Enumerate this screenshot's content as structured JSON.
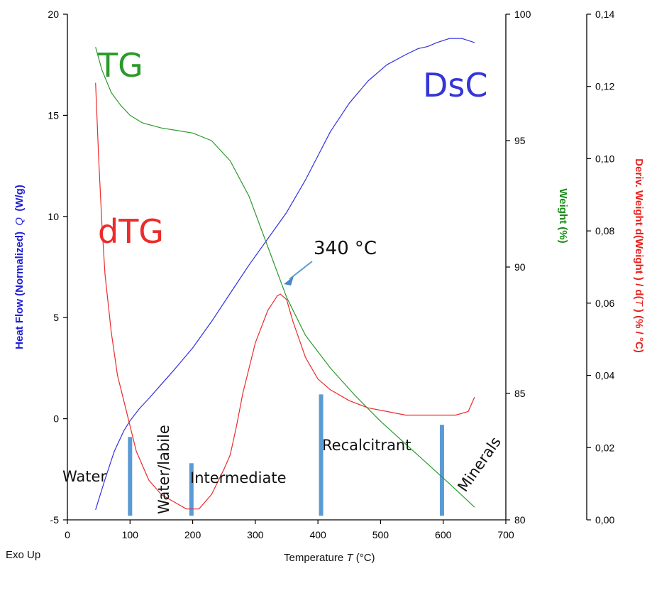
{
  "chart_data": {
    "type": "line",
    "xlabel": "Temperature T (°C)",
    "xlabel_parts": {
      "prefix": "Temperature ",
      "symbol": "T",
      "suffix": " (°C)"
    },
    "xlim": [
      0,
      700
    ],
    "x_ticks": [
      "0",
      "100",
      "200",
      "300",
      "400",
      "500",
      "600",
      "700"
    ],
    "axes": {
      "left": {
        "label": "Heat Flow (Normalized) Q (W/g)",
        "label_parts": {
          "prefix": "Heat Flow (Normalized)  ",
          "symbol": "Q",
          "suffix": "  (W/g)"
        },
        "ylim": [
          -5,
          20
        ],
        "ticks": [
          "-5",
          "0",
          "5",
          "10",
          "15",
          "20"
        ],
        "color": "#1f1fd6"
      },
      "right1": {
        "label": "Weight (%)",
        "ylim": [
          80,
          100
        ],
        "ticks": [
          "80",
          "85",
          "90",
          "95",
          "100"
        ],
        "color": "#138a13"
      },
      "right2": {
        "label": "Deriv. Weight d(Weight) / d(T) (% / °C)",
        "label_parts": {
          "prefix": "Deriv. Weight d(Weight ) / d(",
          "symbol": "T",
          "suffix": " )  (% / °C)"
        },
        "ylim": [
          0,
          0.14
        ],
        "ticks": [
          "0,00",
          "0,02",
          "0,04",
          "0,06",
          "0,08",
          "0,10",
          "0,12",
          "0,14"
        ],
        "color": "#e8201c"
      }
    },
    "series": [
      {
        "name": "DsC",
        "axis": "left",
        "color": "#3030e0",
        "x": [
          45,
          60,
          75,
          90,
          100,
          115,
          130,
          150,
          170,
          200,
          230,
          260,
          290,
          320,
          350,
          380,
          400,
          420,
          450,
          480,
          510,
          540,
          560,
          575,
          590,
          610,
          630,
          650
        ],
        "y": [
          -4.5,
          -3.0,
          -1.6,
          -0.6,
          -0.1,
          0.5,
          1.0,
          1.7,
          2.4,
          3.5,
          4.8,
          6.2,
          7.6,
          8.9,
          10.2,
          11.8,
          13.0,
          14.2,
          15.6,
          16.7,
          17.5,
          18.0,
          18.3,
          18.4,
          18.6,
          18.8,
          18.8,
          18.6
        ]
      },
      {
        "name": "TG",
        "axis": "right1",
        "color": "#2a9a2a",
        "x": [
          45,
          55,
          70,
          85,
          100,
          120,
          150,
          200,
          230,
          260,
          290,
          320,
          350,
          380,
          420,
          460,
          500,
          540,
          580,
          620,
          650
        ],
        "y": [
          98.7,
          97.8,
          96.9,
          96.4,
          96.0,
          95.7,
          95.5,
          95.3,
          95.0,
          94.2,
          92.8,
          90.8,
          88.8,
          87.3,
          86.0,
          84.9,
          83.9,
          83.0,
          82.1,
          81.2,
          80.5
        ]
      },
      {
        "name": "dTG",
        "axis": "right2",
        "color": "#ec2b2b",
        "x": [
          45,
          50,
          55,
          60,
          70,
          80,
          90,
          100,
          110,
          130,
          150,
          170,
          190,
          210,
          230,
          250,
          260,
          270,
          280,
          300,
          320,
          335,
          340,
          350,
          360,
          380,
          400,
          420,
          450,
          480,
          510,
          540,
          570,
          600,
          620,
          640,
          650
        ],
        "y": [
          0.121,
          0.1,
          0.082,
          0.068,
          0.052,
          0.04,
          0.033,
          0.026,
          0.019,
          0.011,
          0.007,
          0.005,
          0.003,
          0.003,
          0.007,
          0.014,
          0.018,
          0.026,
          0.035,
          0.049,
          0.058,
          0.062,
          0.0625,
          0.061,
          0.055,
          0.045,
          0.039,
          0.036,
          0.033,
          0.031,
          0.03,
          0.029,
          0.029,
          0.029,
          0.029,
          0.03,
          0.034
        ]
      }
    ],
    "markers": {
      "color": "#5b9bd5",
      "bars": [
        {
          "x": 100,
          "y_top": -0.9,
          "y_bottom": -4.8
        },
        {
          "x": 198,
          "y_top": -2.2,
          "y_bottom": -4.8
        },
        {
          "x": 405,
          "y_top": 1.2,
          "y_bottom": -4.8
        },
        {
          "x": 598,
          "y_top": -0.3,
          "y_bottom": -4.8
        }
      ]
    },
    "series_labels": {
      "TG": "TG",
      "DsC": "DsC",
      "dTG": "dTG"
    },
    "annotations": {
      "peak": {
        "text": "340 °C",
        "x": 340
      },
      "regions": [
        "Water",
        "Water/labile",
        "Intermediate",
        "Recalcitrant",
        "Minerals"
      ]
    },
    "footer_left": "Exo Up",
    "grid": false,
    "legend": "none"
  }
}
